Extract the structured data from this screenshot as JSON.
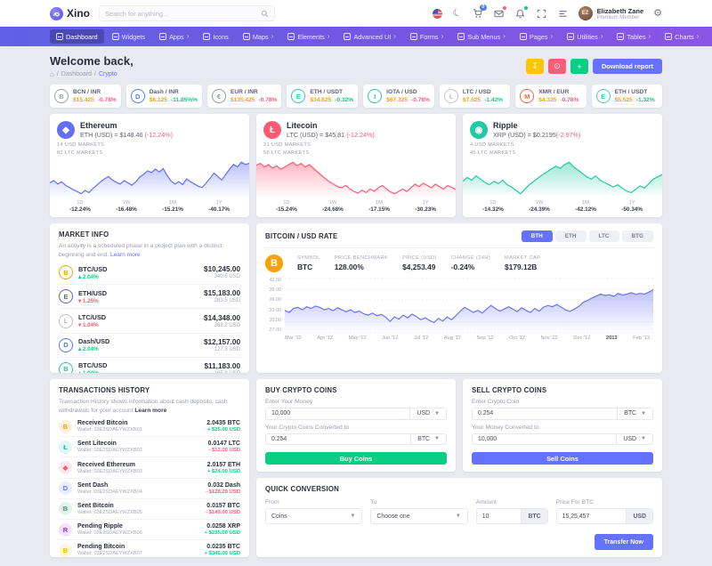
{
  "colors": {
    "primary": "#6571ff",
    "success": "#0acf83",
    "danger": "#fa5c7c",
    "warning": "#fdc40a",
    "price": "#fda006",
    "nav_gradient": [
      "#5d61e3",
      "#8b55e5"
    ]
  },
  "header": {
    "brand": "Xino",
    "search_placeholder": "Search for anything...",
    "cart_badge": "0",
    "user": {
      "initials": "EZ",
      "name": "Elizabeth Zane",
      "role": "Premium Member"
    }
  },
  "nav": {
    "items": [
      {
        "label": "Dashboard",
        "active": "active"
      },
      {
        "label": "Widgets"
      },
      {
        "label": "Apps",
        "caret": "y"
      },
      {
        "label": "Icons"
      },
      {
        "label": "Maps",
        "caret": "y"
      },
      {
        "label": "Elements",
        "caret": "y"
      },
      {
        "label": "Advanced UI",
        "caret": "y"
      },
      {
        "label": "Forms",
        "caret": "y"
      },
      {
        "label": "Sub Menus",
        "caret": "y"
      },
      {
        "label": "Pages",
        "caret": "y"
      },
      {
        "label": "Utilities",
        "caret": "y"
      },
      {
        "label": "Tables",
        "caret": "y"
      },
      {
        "label": "Charts",
        "caret": "y"
      }
    ]
  },
  "page": {
    "title": "Welcome back,",
    "breadcrumb_home": "⌂",
    "breadcrumb": "Dashboard",
    "breadcrumb_active": "Crypto",
    "download_report": "Download report"
  },
  "tickers": [
    {
      "pair": "BCN / INR",
      "price": "$15.425",
      "change": "-0.78%",
      "dir": "down",
      "symbol": "B",
      "accent": "#9aa0ac"
    },
    {
      "pair": "Dash / INR",
      "price": "$6.125",
      "change": "-11.85%%",
      "dir": "up",
      "symbol": "D",
      "accent": "#4c7cf3"
    },
    {
      "pair": "EUR / INR",
      "price": "$135.425",
      "change": "-0.78%",
      "dir": "down",
      "symbol": "€",
      "accent": "#8f96a3"
    },
    {
      "pair": "ETH / USDT",
      "price": "$34.625",
      "change": "-0.32%",
      "dir": "up",
      "symbol": "E",
      "accent": "#2bc6a8"
    },
    {
      "pair": "IOTA / USD",
      "price": "$67.325",
      "change": "-0.78%",
      "dir": "down",
      "symbol": "I",
      "accent": "#2bc68d"
    },
    {
      "pair": "LTC / USD",
      "price": "$7.525",
      "change": "-1.42%",
      "dir": "up",
      "symbol": "Ł",
      "accent": "#c3c8d4"
    },
    {
      "pair": "XMR / EUR",
      "price": "$4.325",
      "change": "-0.78%",
      "dir": "down",
      "symbol": "M",
      "accent": "#f06548"
    },
    {
      "pair": "ETH / USDT",
      "price": "$5.525",
      "change": "-1.32%",
      "dir": "up",
      "symbol": "E",
      "accent": "#4cc9b0"
    }
  ],
  "coins": {
    "eth": {
      "title": "Ethereum",
      "sub": "ETH (USD) = $148.46 ",
      "chg": "(-12.24%)",
      "m1": "14 USD Markets",
      "m2": "82 LTC Markets",
      "symbol": "◆",
      "cols": [
        {
          "t": "1D",
          "v": "-12.24%"
        },
        {
          "t": "1W",
          "v": "-16.48%"
        },
        {
          "t": "1M",
          "v": "-15.21%"
        },
        {
          "t": "1Y",
          "v": "-40.17%"
        }
      ]
    },
    "ltc": {
      "title": "Litecoin",
      "sub": "LTC (USD) = $45.81 ",
      "chg": "(-12.24%)",
      "m1": "21 USD Markets",
      "m2": "56 LTC Markets",
      "symbol": "Ł",
      "cols": [
        {
          "t": "1D",
          "v": "-15.24%"
        },
        {
          "t": "1W",
          "v": "-24.68%"
        },
        {
          "t": "1M",
          "v": "-17.15%"
        },
        {
          "t": "1Y",
          "v": "-30.23%"
        }
      ]
    },
    "xrp": {
      "title": "Ripple",
      "sub": "XRP (USD) = $0.2195",
      "chg": "(-2.97%)",
      "m1": "4 USD Markets",
      "m2": "45 LTC Markets",
      "symbol": "◉",
      "cols": [
        {
          "t": "1D",
          "v": "-14.32%"
        },
        {
          "t": "1W",
          "v": "-24.39%"
        },
        {
          "t": "1M",
          "v": "-42.12%"
        },
        {
          "t": "1Y",
          "v": "-50.34%"
        }
      ]
    }
  },
  "market_info": {
    "title": "Market Info",
    "desc": "An activity is a scheduled phase in a project plan with a distinct beginning and end. ",
    "learn_more": "Learn more",
    "rows": [
      {
        "pair": "BTC/USD",
        "change": "2.04%",
        "dir": "up",
        "price": "$10,245.00",
        "sub": "340.5 USD",
        "symbol": "B",
        "accent": "#f7a109"
      },
      {
        "pair": "ETH/USD",
        "change": "1.25%",
        "dir": "down",
        "price": "$15,183.00",
        "sub": "283.5 USD",
        "symbol": "E",
        "accent": "#5b5fd6"
      },
      {
        "pair": "LTC/USD",
        "change": "1.04%",
        "dir": "down",
        "price": "$14,348.00",
        "sub": "368.2 USD",
        "symbol": "Ł",
        "accent": "#b8bdc9"
      },
      {
        "pair": "Dash/USD",
        "change": "2.04%",
        "dir": "up",
        "price": "$12,157.00",
        "sub": "127.3 USD",
        "symbol": "D",
        "accent": "#4c7cf3"
      },
      {
        "pair": "BTC/USD",
        "change": "1.04%",
        "dir": "up",
        "price": "$11,183.00",
        "sub": "165.8 USD",
        "symbol": "B",
        "accent": "#2bc6a8"
      }
    ]
  },
  "btc_rate": {
    "title": "Bitcoin / USD Rate",
    "tabs": [
      {
        "label": "BTH",
        "active": "active"
      },
      {
        "label": "ETH"
      },
      {
        "label": "LTC"
      },
      {
        "label": "BTG"
      }
    ],
    "coin_symbol": "B",
    "stats": [
      {
        "lab": "Symbol",
        "val": "BTC"
      },
      {
        "lab": "Price Benchmark",
        "val": "128.00%"
      },
      {
        "lab": "Price (USD)",
        "val": "$4,253.49"
      },
      {
        "lab": "Change (24H)",
        "val": "-0.24%"
      },
      {
        "lab": "Market Cap",
        "val": "$179.12B"
      }
    ],
    "ylabels": [
      {
        "t": "42.50"
      },
      {
        "t": "39.00"
      },
      {
        "t": "36.00"
      },
      {
        "t": "33.00"
      },
      {
        "t": "30.00"
      },
      {
        "t": "27.00"
      }
    ],
    "xlabels": [
      {
        "t": "Mar '12"
      },
      {
        "t": "Apr '12"
      },
      {
        "t": "May '12"
      },
      {
        "t": "Jun '12"
      },
      {
        "t": "Jul '12"
      },
      {
        "t": "Aug '12"
      },
      {
        "t": "Sep '12"
      },
      {
        "t": "Oct '12"
      },
      {
        "t": "Nov '12"
      },
      {
        "t": "Dec '12"
      },
      {
        "t": "2013",
        "b": "bold"
      },
      {
        "t": "Feb '13"
      }
    ]
  },
  "transactions": {
    "title": "Transactions History",
    "desc": "Transaction History shows information about cash deposits, cash withdrawals for your account ",
    "learn_more": "Learn more",
    "rows": [
      {
        "title": "Received Bitcoin",
        "wallet": "Wallet: 03E2SDAEYWZXB01",
        "amount": "2.0435 BTC",
        "change": "+ $25.00 USD",
        "dir": "up",
        "symbol": "B",
        "accent": "#f7a109"
      },
      {
        "title": "Sent Litecoin",
        "wallet": "Wallet: 03E2SDAEYWZXB02",
        "amount": "0.0147 LTC",
        "change": "- $12.00 USD",
        "dir": "down",
        "symbol": "Ł",
        "accent": "#17b8a6"
      },
      {
        "title": "Received Ethereum",
        "wallet": "Wallet: 03E2SDAEYWZXB03",
        "amount": "2.0157 ETH",
        "change": "+ $24.00 USD",
        "dir": "up",
        "symbol": "◆",
        "accent": "#fa5c7c"
      },
      {
        "title": "Sent Dash",
        "wallet": "Wallet: 03E2SDAEYWZXB04",
        "amount": "0.032 Dash",
        "change": "- $128.29 USD",
        "dir": "down",
        "symbol": "D",
        "accent": "#6571ff"
      },
      {
        "title": "Sent Bitcoin",
        "wallet": "Wallet: 03E2SDAEYWZXB05",
        "amount": "0.0157 BTC",
        "change": "- $149.00 USD",
        "dir": "down",
        "symbol": "B",
        "accent": "#0bb377"
      },
      {
        "title": "Pending Ripple",
        "wallet": "Wallet: 03E2SDAEYWZXB06",
        "amount": "0.0258 XRP",
        "change": "+ $235.00 USD",
        "dir": "up",
        "symbol": "R",
        "accent": "#9b2fd4"
      },
      {
        "title": "Pending Bitcoin",
        "wallet": "Wallet: 03E2SDAEYWZXB07",
        "amount": "0.0235 BTC",
        "change": "+ $345.00 USD",
        "dir": "up",
        "symbol": "B",
        "accent": "#f0b90b"
      }
    ]
  },
  "buy": {
    "title": "Buy Crypto Coins",
    "label1": "Enter Your Money",
    "value1": "10,000",
    "cur1": "USD",
    "label2": "Your Crypto Coins Converted to",
    "value2": "0.254",
    "cur2": "BTC",
    "button": "Buy Coins"
  },
  "sell": {
    "title": "Sell Crypto Coins",
    "label1": "Enter Crypto Coin",
    "value1": "0.254",
    "cur1": "BTC",
    "label2": "Your Money Converted to",
    "value2": "10,000",
    "cur2": "USD",
    "button": "Sell Coins"
  },
  "quick": {
    "title": "Quick Conversion",
    "from_label": "From",
    "from_value": "Coins",
    "to_label": "To",
    "to_value": "Choose one",
    "amount_label": "Amount",
    "amount_value": "10",
    "amount_addon": "BTC",
    "price_label": "Price For BTC",
    "price_value": "15,25,457",
    "price_addon": "USD",
    "button": "Transfer Now"
  },
  "chart_data": [
    {
      "id": "eth",
      "type": "area",
      "title": "Ethereum ETH/USD sparkline",
      "color": "#6470f2",
      "values": [
        48,
        52,
        46,
        50,
        44,
        40,
        36,
        33,
        29,
        35,
        31,
        38,
        44,
        50,
        55,
        59,
        53,
        49,
        46,
        52,
        48,
        44,
        50,
        58,
        63,
        69,
        66,
        72,
        67,
        73,
        61,
        51,
        46,
        50,
        45,
        55,
        50,
        46,
        42,
        40,
        48,
        56,
        65,
        59,
        53,
        63,
        72,
        80,
        76,
        84,
        80,
        82
      ]
    },
    {
      "id": "ltc",
      "type": "area",
      "title": "Litecoin LTC/USD sparkline",
      "color": "#ff5b74",
      "values": [
        74,
        77,
        71,
        75,
        69,
        73,
        67,
        71,
        75,
        79,
        73,
        77,
        71,
        75,
        69,
        63,
        57,
        51,
        46,
        42,
        38,
        36,
        40,
        34,
        30,
        27,
        32,
        28,
        34,
        30,
        36,
        40,
        34,
        29,
        26,
        30,
        34,
        30,
        36,
        42,
        38,
        44,
        40,
        36,
        42,
        38,
        34,
        40,
        37,
        33
      ]
    },
    {
      "id": "xrp",
      "type": "area",
      "title": "Ripple XRP/USD sparkline",
      "color": "#21caa0",
      "values": [
        50,
        57,
        52,
        60,
        54,
        48,
        44,
        50,
        46,
        52,
        44,
        40,
        34,
        28,
        36,
        44,
        50,
        56,
        62,
        67,
        72,
        77,
        73,
        80,
        84,
        76,
        70,
        64,
        58,
        54,
        60,
        52,
        48,
        44,
        40,
        44,
        38,
        33,
        30,
        36,
        42,
        38,
        46,
        54,
        58,
        62
      ]
    },
    {
      "id": "btc",
      "type": "area",
      "title": "Bitcoin / USD Rate",
      "color": "#6b74f5",
      "ylim": [
        26.5,
        43
      ],
      "grid": 5,
      "legend": "none",
      "xlabels": [
        "Mar '12",
        "Apr '12",
        "May '12",
        "Jun '12",
        "Jul '12",
        "Aug '12",
        "Sep '12",
        "Oct '12",
        "Nov '12",
        "Dec '12",
        "2013",
        "Feb '13"
      ],
      "values": [
        33.2,
        32.6,
        33.8,
        34.1,
        33.4,
        34.3,
        33.8,
        34.5,
        34.1,
        33.4,
        33.8,
        33.1,
        34.0,
        33.4,
        32.8,
        33.4,
        32.6,
        33.0,
        32.2,
        31.8,
        32.4,
        31.6,
        32.0,
        31.2,
        29.9,
        31.3,
        30.6,
        31.8,
        31.0,
        32.1,
        31.4,
        30.4,
        31.0,
        30.2,
        29.6,
        30.8,
        30.0,
        31.2,
        30.4,
        31.6,
        33.0,
        34.1,
        33.4,
        32.6,
        33.2,
        32.4,
        33.6,
        34.7,
        33.8,
        33.0,
        33.6,
        34.3,
        33.6,
        32.8,
        34.0,
        33.2,
        32.6,
        33.8,
        33.0,
        34.2,
        34.7,
        34.3,
        35.0,
        34.2,
        33.4,
        32.9,
        33.6,
        34.4,
        35.6,
        36.2,
        36.9,
        37.5,
        38.1,
        37.7,
        37.9,
        37.4,
        38.3,
        37.8,
        38.1,
        38.5,
        38.0,
        38.3,
        38.1,
        38.7,
        39.4
      ]
    }
  ]
}
